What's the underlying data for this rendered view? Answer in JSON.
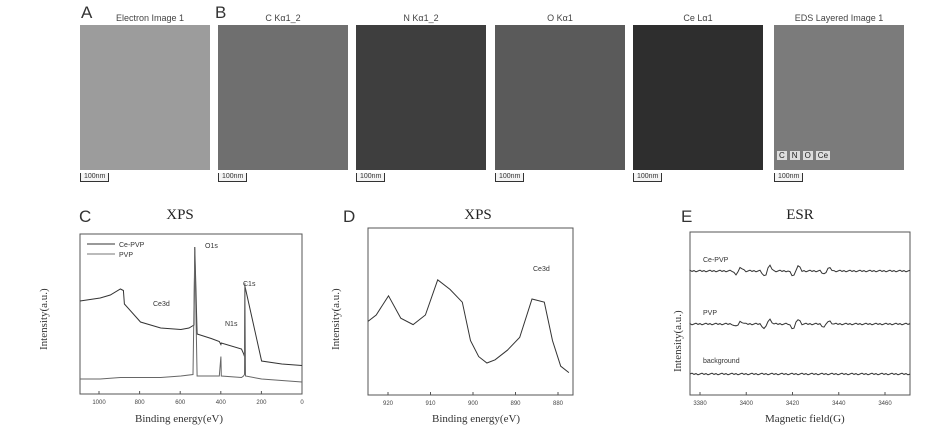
{
  "panel_letters": {
    "a": "A",
    "b": "B",
    "c": "C",
    "d": "D",
    "e": "E"
  },
  "images": {
    "electron": "Electron Image 1",
    "c": "C Kα1_2",
    "n": "N Kα1_2",
    "o": "O Kα1",
    "ce": "Ce Lα1",
    "eds": "EDS Layered Image 1"
  },
  "scale_bar": "100nm",
  "eds_legend": [
    "C",
    "N",
    "O",
    "Ce"
  ],
  "xps_c": {
    "title": "XPS",
    "xlabel": "Binding energy(eV)",
    "ylabel": "Intensity(a.u.)",
    "legend": [
      "Ce-PVP",
      "PVP"
    ],
    "peak_labels": [
      "O1s",
      "Ce3d",
      "N1s",
      "C1s"
    ],
    "x_ticks": [
      "1000",
      "800",
      "600",
      "400",
      "200",
      "0"
    ]
  },
  "xps_d": {
    "title": "XPS",
    "xlabel": "Binding energy(eV)",
    "ylabel": "Intensity(a.u.)",
    "peak_label": "Ce3d",
    "x_ticks": [
      "920",
      "910",
      "900",
      "890",
      "880"
    ]
  },
  "esr_e": {
    "title": "ESR",
    "xlabel": "Magnetic field(G)",
    "ylabel": "Intensity(a.u.)",
    "trace_labels": [
      "Ce-PVP",
      "PVP",
      "background"
    ],
    "x_ticks": [
      "3380",
      "3400",
      "3420",
      "3440",
      "3460"
    ]
  },
  "chart_data": [
    {
      "type": "line",
      "panel": "C",
      "title": "XPS",
      "xlabel": "Binding energy(eV)",
      "ylabel": "Intensity(a.u.)",
      "xlim": [
        1100,
        0
      ],
      "series": [
        {
          "name": "Ce-PVP",
          "x": [
            1100,
            1000,
            950,
            900,
            885,
            880,
            800,
            700,
            600,
            560,
            535,
            531,
            520,
            450,
            410,
            402,
            400,
            300,
            290,
            285,
            283,
            200,
            100,
            0
          ],
          "y": [
            0.62,
            0.64,
            0.66,
            0.7,
            0.69,
            0.6,
            0.48,
            0.44,
            0.43,
            0.44,
            0.46,
            0.98,
            0.4,
            0.37,
            0.35,
            0.33,
            0.34,
            0.3,
            0.27,
            0.25,
            0.72,
            0.22,
            0.2,
            0.19
          ]
        },
        {
          "name": "PVP",
          "x": [
            1100,
            1000,
            900,
            800,
            700,
            600,
            540,
            531,
            520,
            410,
            402,
            400,
            300,
            290,
            285,
            283,
            280,
            200,
            100,
            0
          ],
          "y": [
            0.1,
            0.1,
            0.11,
            0.11,
            0.11,
            0.12,
            0.13,
            0.96,
            0.12,
            0.12,
            0.25,
            0.12,
            0.11,
            0.12,
            0.13,
            0.74,
            0.12,
            0.1,
            0.09,
            0.08
          ]
        }
      ]
    },
    {
      "type": "line",
      "panel": "D",
      "title": "XPS",
      "xlabel": "Binding energy(eV)",
      "ylabel": "Intensity(a.u.)",
      "xlim": [
        925,
        875
      ],
      "series": [
        {
          "x": [
            925,
            923,
            920,
            917,
            914,
            911,
            908,
            905,
            902,
            900,
            898,
            896,
            894,
            891,
            888,
            885,
            882,
            880,
            878,
            876
          ],
          "y": [
            0.46,
            0.5,
            0.62,
            0.48,
            0.44,
            0.5,
            0.72,
            0.66,
            0.58,
            0.34,
            0.24,
            0.2,
            0.22,
            0.28,
            0.36,
            0.6,
            0.58,
            0.34,
            0.18,
            0.14
          ]
        }
      ]
    },
    {
      "type": "line",
      "panel": "E",
      "title": "ESR",
      "xlabel": "Magnetic field(G)",
      "ylabel": "Intensity(a.u.)",
      "xlim": [
        3370,
        3470
      ],
      "series": [
        {
          "name": "Ce-PVP",
          "peaks_G": [
            3392,
            3405,
            3418,
            3432
          ],
          "amplitude": [
            0.6,
            1.0,
            1.0,
            0.6
          ]
        },
        {
          "name": "PVP",
          "peaks_G": [
            3392,
            3405,
            3418,
            3432
          ],
          "amplitude": [
            0.5,
            0.9,
            0.9,
            0.6
          ]
        },
        {
          "name": "background",
          "peaks_G": [],
          "amplitude": []
        }
      ]
    }
  ]
}
